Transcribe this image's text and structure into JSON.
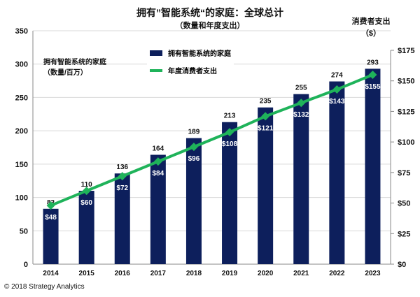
{
  "chart_data": {
    "type": "bar+line",
    "title": "拥有”智能系统“的家庭：全球总计",
    "subtitle": "（数量和年度支出）",
    "ylabel_left": [
      "拥有智能系统的家庭",
      "（数量/百万）"
    ],
    "ylabel_right": [
      "消费者支出",
      "（$）"
    ],
    "categories": [
      "2014",
      "2015",
      "2016",
      "2017",
      "2018",
      "2019",
      "2020",
      "2021",
      "2022",
      "2023"
    ],
    "ylim_left": [
      0,
      350
    ],
    "yticks_left": [
      "0",
      "50",
      "100",
      "150",
      "200",
      "250",
      "300",
      "350"
    ],
    "ylim_right": [
      0,
      175
    ],
    "yticks_right": [
      "$0",
      "$25",
      "$50",
      "$75",
      "$100",
      "$125",
      "$150",
      "$175"
    ],
    "grid": true,
    "legend_position": "top-center",
    "series": [
      {
        "name": "拥有智能系统的家庭",
        "type": "bar",
        "color": "#0d1f5c",
        "values": [
          83,
          110,
          136,
          164,
          189,
          213,
          235,
          255,
          274,
          293
        ],
        "labels": [
          "83",
          "110",
          "136",
          "164",
          "189",
          "213",
          "235",
          "255",
          "274",
          "293"
        ]
      },
      {
        "name": "年度消费者支出",
        "type": "line",
        "color": "#1fb35a",
        "axis": "right",
        "values": [
          48,
          60,
          72,
          84,
          96,
          108,
          121,
          132,
          143,
          155
        ],
        "labels": [
          "$48",
          "$60",
          "$72",
          "$84",
          "$96",
          "$108",
          "$121",
          "$132",
          "$143",
          "$155"
        ]
      }
    ]
  },
  "footer": "© 2018 Strategy Analytics"
}
